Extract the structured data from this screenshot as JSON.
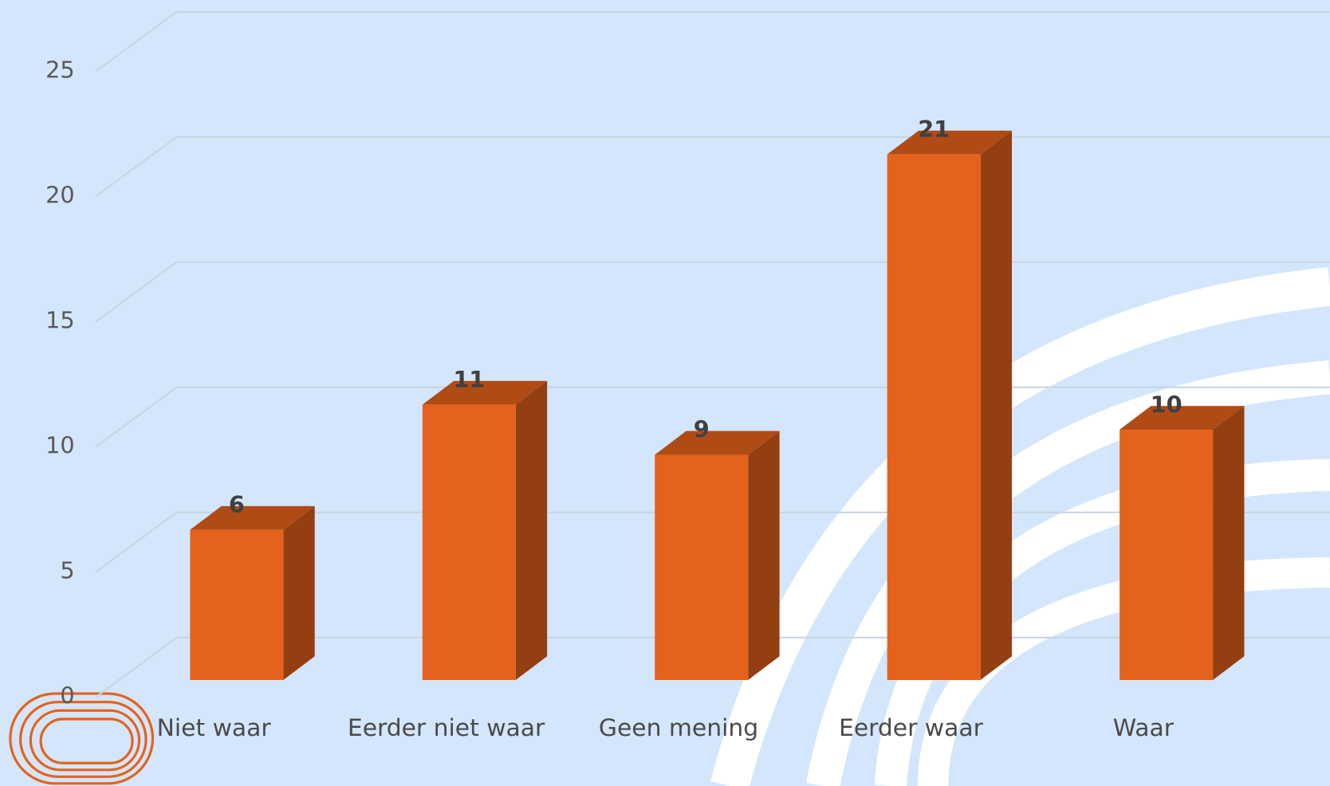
{
  "chart_data": {
    "type": "bar3d",
    "categories": [
      "Niet waar",
      "Eerder niet waar",
      "Geen mening",
      "Eerder waar",
      "Waar"
    ],
    "values": [
      6,
      11,
      9,
      21,
      10
    ],
    "color": "#e5621c",
    "ylim": [
      0,
      25
    ],
    "yticks": [
      0,
      5,
      10,
      15,
      20,
      25
    ],
    "grid": true
  }
}
